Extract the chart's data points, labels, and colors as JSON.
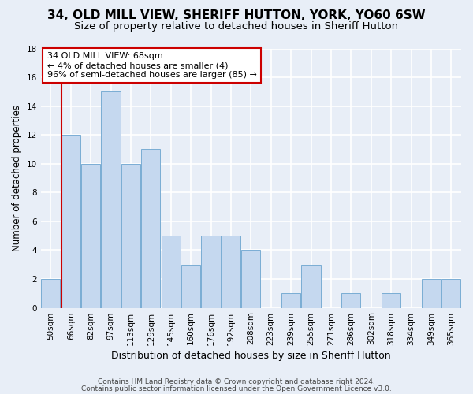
{
  "title1": "34, OLD MILL VIEW, SHERIFF HUTTON, YORK, YO60 6SW",
  "title2": "Size of property relative to detached houses in Sheriff Hutton",
  "xlabel": "Distribution of detached houses by size in Sheriff Hutton",
  "ylabel": "Number of detached properties",
  "categories": [
    "50sqm",
    "66sqm",
    "82sqm",
    "97sqm",
    "113sqm",
    "129sqm",
    "145sqm",
    "160sqm",
    "176sqm",
    "192sqm",
    "208sqm",
    "223sqm",
    "239sqm",
    "255sqm",
    "271sqm",
    "286sqm",
    "302sqm",
    "318sqm",
    "334sqm",
    "349sqm",
    "365sqm"
  ],
  "values": [
    2,
    12,
    10,
    15,
    10,
    11,
    5,
    3,
    5,
    5,
    4,
    0,
    1,
    3,
    0,
    1,
    0,
    1,
    0,
    2,
    2
  ],
  "bar_color": "#c5d8ef",
  "bar_edge_color": "#7aadd4",
  "highlight_color": "#cc0000",
  "annotation_text": "34 OLD MILL VIEW: 68sqm\n← 4% of detached houses are smaller (4)\n96% of semi-detached houses are larger (85) →",
  "annotation_box_color": "#ffffff",
  "annotation_box_edge": "#cc0000",
  "ylim": [
    0,
    18
  ],
  "yticks": [
    0,
    2,
    4,
    6,
    8,
    10,
    12,
    14,
    16,
    18
  ],
  "footer1": "Contains HM Land Registry data © Crown copyright and database right 2024.",
  "footer2": "Contains public sector information licensed under the Open Government Licence v3.0.",
  "background_color": "#e8eef7",
  "grid_color": "#ffffff",
  "title1_fontsize": 11,
  "title2_fontsize": 9.5,
  "xlabel_fontsize": 9,
  "ylabel_fontsize": 8.5,
  "tick_fontsize": 7.5,
  "annotation_fontsize": 8,
  "footer_fontsize": 6.5
}
